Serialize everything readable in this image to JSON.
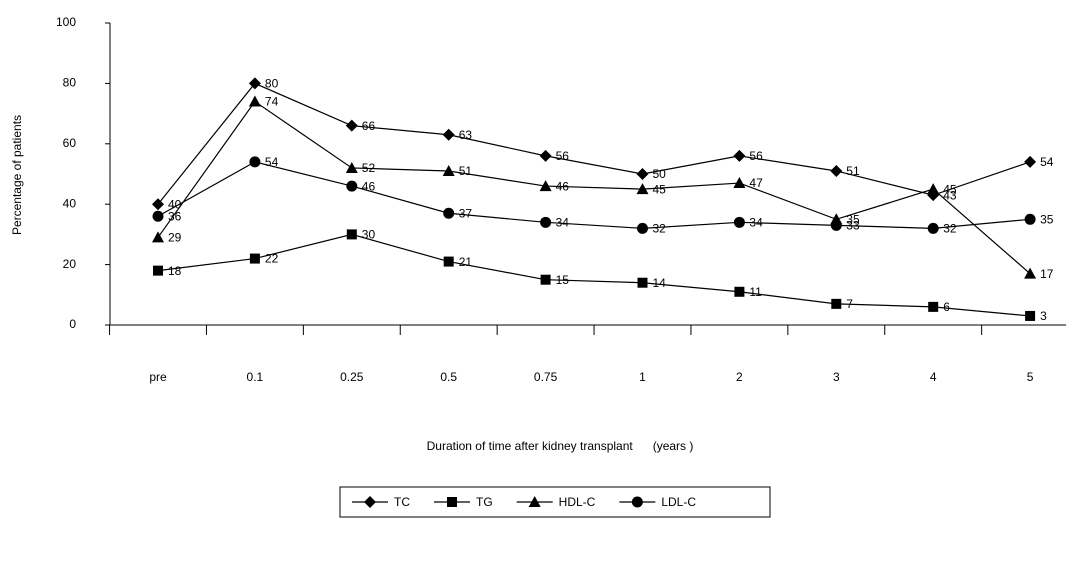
{
  "chart_data": {
    "type": "line",
    "categories": [
      "pre",
      "0.1",
      "0.25",
      "0.5",
      "0.75",
      "1",
      "2",
      "3",
      "4",
      "5"
    ],
    "x_label": "Duration of time after kidney transplant      (years )",
    "y_label": "Percentage of patients",
    "ylim": [
      0,
      100
    ],
    "yticks": [
      0,
      20,
      40,
      60,
      80,
      100
    ],
    "legend": "bottom",
    "series": [
      {
        "name": "TC",
        "color": "#000000",
        "marker": "diamond",
        "values": [
          40,
          80,
          66,
          63,
          56,
          50,
          56,
          51,
          43,
          54
        ]
      },
      {
        "name": "TG",
        "color": "#000000",
        "marker": "square",
        "values": [
          18,
          22,
          30,
          21,
          15,
          14,
          11,
          7,
          6,
          3
        ]
      },
      {
        "name": "HDL-C",
        "color": "#000000",
        "marker": "triangle",
        "values": [
          29,
          74,
          52,
          51,
          46,
          45,
          47,
          35,
          45,
          17
        ]
      },
      {
        "name": "LDL-C",
        "color": "#000000",
        "marker": "circle",
        "values": [
          36,
          54,
          46,
          37,
          34,
          32,
          34,
          33,
          32,
          35
        ]
      }
    ]
  }
}
